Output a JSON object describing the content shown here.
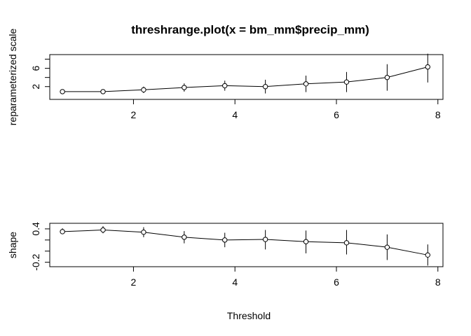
{
  "title": "threshrange.plot(x = bm_mm$precip_mm)",
  "xlabel": "Threshold",
  "chart_data": [
    {
      "type": "line",
      "title": "threshrange.plot(x = bm_mm$precip_mm)",
      "ylabel": "reparameterized scale",
      "xlabel": "",
      "xlim": [
        0.35,
        8.1
      ],
      "ylim": [
        -0.8,
        9.0
      ],
      "xticks": [
        2,
        4,
        6,
        8
      ],
      "yticks": [
        2,
        6
      ],
      "yticks_minor": [
        4,
        8
      ],
      "grid": false,
      "series": [
        {
          "x": [
            0.6,
            1.4,
            2.2,
            3.0,
            3.8,
            4.6,
            5.4,
            6.2,
            7.0,
            7.8
          ],
          "y": [
            0.9,
            0.9,
            1.3,
            1.8,
            2.2,
            2.0,
            2.6,
            3.0,
            4.0,
            6.3
          ],
          "lower": [
            0.6,
            0.4,
            0.6,
            0.9,
            1.1,
            0.5,
            0.8,
            0.8,
            1.1,
            2.9
          ],
          "upper": [
            1.2,
            1.4,
            2.0,
            2.7,
            3.3,
            3.5,
            4.4,
            5.2,
            6.9,
            9.2
          ]
        }
      ]
    },
    {
      "type": "line",
      "title": "",
      "ylabel": "shape",
      "xlabel": "Threshold",
      "xlim": [
        0.35,
        8.1
      ],
      "ylim": [
        -0.28,
        0.5
      ],
      "xticks": [
        2,
        4,
        6,
        8
      ],
      "yticks": [
        -0.2,
        0.4
      ],
      "yticks_minor": [
        0.0,
        0.2
      ],
      "grid": false,
      "series": [
        {
          "x": [
            0.6,
            1.4,
            2.2,
            3.0,
            3.8,
            4.6,
            5.4,
            6.2,
            7.0,
            7.8
          ],
          "y": [
            0.35,
            0.38,
            0.34,
            0.25,
            0.2,
            0.21,
            0.17,
            0.15,
            0.07,
            -0.07
          ],
          "lower": [
            0.31,
            0.32,
            0.25,
            0.14,
            0.07,
            0.03,
            -0.04,
            -0.06,
            -0.16,
            -0.26
          ],
          "upper": [
            0.41,
            0.45,
            0.43,
            0.36,
            0.33,
            0.38,
            0.37,
            0.38,
            0.3,
            0.12
          ]
        }
      ]
    }
  ]
}
